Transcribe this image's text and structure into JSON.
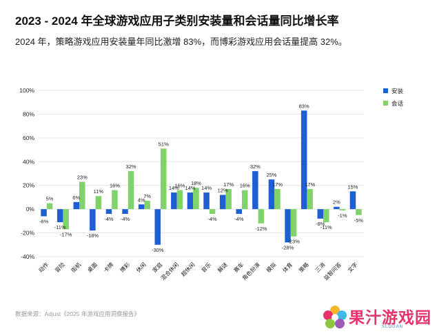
{
  "header": {
    "title": "2023 - 2024 年全球游戏应用子类别安装量和会话量同比增长率",
    "subtitle": "2024 年，策略游戏应用安装量年同比激增 83%，而博彩游戏应用会话量提高 32%。"
  },
  "footer": {
    "source": "数据来源：Adjust《2025 年游戏应用洞察报告》",
    "brand_name": "果汁游戏园",
    "brand_slogan": "SLOGAN"
  },
  "colors": {
    "install": "#1f5fd4",
    "session": "#7fd36a",
    "grid": "#e3e3e3",
    "axis_text": "#222222"
  },
  "chart_data": {
    "type": "bar",
    "categories": [
      "动作",
      "冒险",
      "街机",
      "桌面",
      "卡牌",
      "博彩",
      "休闲",
      "家庭",
      "混合休闲",
      "超休闲",
      "音乐",
      "解谜",
      "赛车",
      "角色扮演",
      "模拟",
      "体育",
      "策略",
      "三消",
      "益智问答",
      "文字"
    ],
    "series": [
      {
        "name": "安装",
        "values": [
          -6,
          -11,
          6,
          -18,
          -4,
          -4,
          4,
          -30,
          14,
          14,
          14,
          12,
          -4,
          32,
          25,
          -28,
          83,
          -8,
          2,
          15
        ]
      },
      {
        "name": "会话",
        "values": [
          5,
          -17,
          23,
          11,
          16,
          32,
          7,
          51,
          16,
          18,
          -4,
          17,
          16,
          -12,
          17,
          -23,
          17,
          -11,
          -1,
          -5
        ]
      }
    ],
    "ylim": [
      -40,
      100
    ],
    "yticks": [
      -40,
      -20,
      0,
      20,
      40,
      60,
      80,
      100
    ],
    "ytick_labels": [
      "-40%",
      "-20%",
      "0%",
      "20%",
      "40%",
      "60%",
      "80%",
      "100%"
    ],
    "value_suffix": "%",
    "grid": true,
    "legend_position": "right"
  }
}
